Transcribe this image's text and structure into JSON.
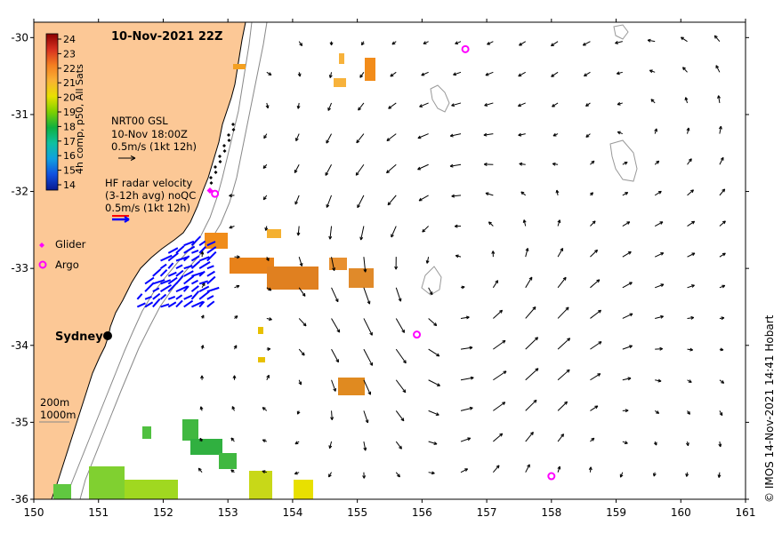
{
  "title": "10-Nov-2021 22Z",
  "axes": {
    "x_ticks": [
      "150",
      "151",
      "152",
      "153",
      "154",
      "155",
      "156",
      "157",
      "158",
      "159",
      "160",
      "161"
    ],
    "y_ticks": [
      "-30",
      "-31",
      "-32",
      "-33",
      "-34",
      "-35",
      "-36"
    ]
  },
  "colorbar": {
    "label": "4h comp, p50, All Sats",
    "ticks": [
      "24",
      "23",
      "22",
      "21",
      "20",
      "19",
      "18",
      "17",
      "16",
      "15",
      "14"
    ]
  },
  "legend": {
    "gsl_line1": "NRT00 GSL",
    "gsl_line2": "10-Nov 18:00Z",
    "gsl_line3": "0.5m/s (1kt 12h)",
    "hf_line1": "HF radar velocity",
    "hf_line2": "(3-12h avg) noQC",
    "hf_line3": "0.5m/s (1kt 12h)",
    "glider": "Glider",
    "argo": "Argo"
  },
  "place": {
    "city": "Sydney"
  },
  "depth_labels": {
    "d200": "200m",
    "d1000": "1000m"
  },
  "credit": "© IMOS 14-Nov-2021 14:41 Hobart",
  "colors": {
    "land": "#fcc896",
    "glider": "#ff00ff",
    "argo": "#ff00ff",
    "hf_radar": "#0000ff",
    "gsl_arrow": "#000000"
  },
  "argo_floats": [
    {
      "lon": 156.67,
      "lat": -30.15
    },
    {
      "lon": 155.92,
      "lat": -33.86
    },
    {
      "lon": 158.0,
      "lat": -35.7
    },
    {
      "lon": 152.8,
      "lat": -32.03
    }
  ]
}
